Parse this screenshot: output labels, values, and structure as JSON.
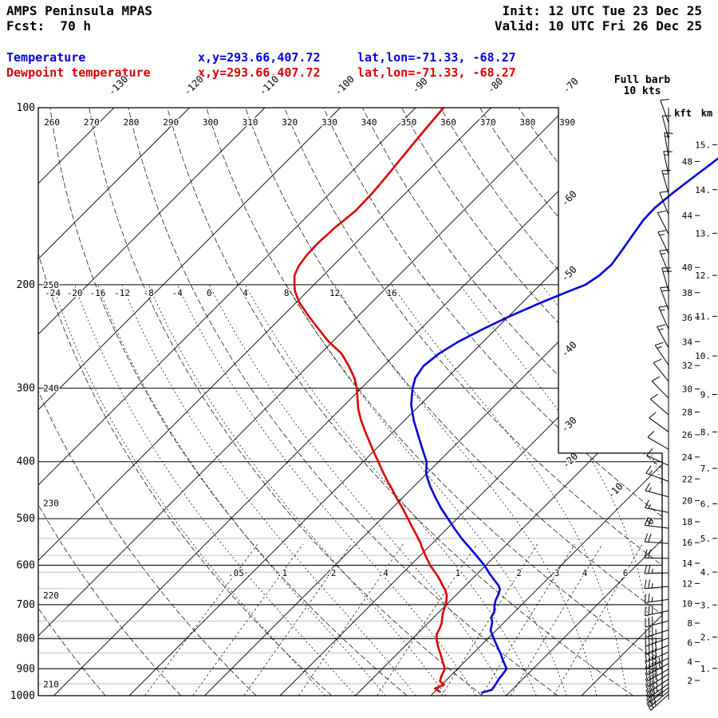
{
  "header": {
    "title": "AMPS Peninsula MPAS",
    "fcst": "Fcst:  70 h",
    "init": "Init: 12 UTC Tue 23 Dec 25",
    "valid": "Valid: 10 UTC Fri 26 Dec 25"
  },
  "legend": {
    "temperature_label": "Temperature",
    "temperature_xy": "x,y=293.66,407.72",
    "temperature_latlon": "lat,lon=-71.33, -68.27",
    "dewpoint_label": "Dewpoint temperature",
    "dewpoint_xy": "x,y=293.66,407.72",
    "dewpoint_latlon": "lat,lon=-71.33, -68.27"
  },
  "barb_legend": {
    "line1": "Full barb",
    "line2": "10 kts",
    "full_barb_kts": 10
  },
  "colors": {
    "temperature": "#0000dd",
    "dewpoint": "#dd0000",
    "grid": "#000000",
    "height_lines": "#b8b8b8"
  },
  "chart_data": {
    "type": "skewt_logp_sounding",
    "pressure_axis_hpa": [
      100,
      200,
      300,
      400,
      500,
      600,
      700,
      800,
      900,
      1000
    ],
    "height_gridlines_km": [
      0.5,
      1,
      1.5,
      2,
      2.5,
      3,
      3.5,
      4,
      4.5,
      5
    ],
    "isotherms_c": {
      "interval": 10,
      "top_labels": [
        -130,
        -120,
        -110,
        -100,
        -90,
        -80,
        -70
      ],
      "right_labels": [
        -60,
        -50,
        -40,
        -30
      ],
      "lower_right_labels": [
        -20,
        -10,
        0
      ]
    },
    "dry_adiabats_k": {
      "interval": 10,
      "top_labels": [
        260,
        270,
        280,
        290,
        300,
        310,
        320,
        330,
        340,
        350,
        360,
        370,
        380,
        390
      ],
      "left_labels": [
        [
          250,
          200
        ],
        [
          240,
          300
        ],
        [
          230,
          470
        ],
        [
          220,
          675
        ],
        [
          210,
          955
        ]
      ]
    },
    "moist_adiabats_c": [
      -24,
      -20,
      -16,
      -12,
      -8,
      -4,
      0,
      4,
      8,
      12,
      16
    ],
    "moist_adiabats_unlabeled_c": [
      20,
      24
    ],
    "mixing_ratio_g_kg": [
      0.05,
      0.1,
      0.2,
      0.4,
      1,
      2,
      3,
      4,
      6
    ],
    "scale_units": {
      "kft": "kft",
      "km": "km"
    },
    "height_scale_kft": [
      48,
      44,
      40,
      38,
      36,
      34,
      32,
      30,
      28,
      26,
      24,
      22,
      20,
      18,
      16,
      14,
      12,
      10,
      8,
      6,
      4,
      2
    ],
    "height_scale_km": [
      15,
      14,
      13,
      12,
      11,
      10,
      9,
      8,
      7,
      6,
      5,
      4,
      3,
      2,
      1
    ],
    "temperature_profile_p_t": [
      [
        988,
        -3.6
      ],
      [
        978,
        -2.7
      ],
      [
        965,
        -2.8
      ],
      [
        950,
        -3.0
      ],
      [
        935,
        -3.2
      ],
      [
        920,
        -3.3
      ],
      [
        900,
        -3.5
      ],
      [
        880,
        -4.6
      ],
      [
        860,
        -5.7
      ],
      [
        850,
        -6.2
      ],
      [
        830,
        -7.4
      ],
      [
        800,
        -9.2
      ],
      [
        775,
        -10.7
      ],
      [
        750,
        -11.6
      ],
      [
        735,
        -12.4
      ],
      [
        720,
        -12.7
      ],
      [
        705,
        -13.4
      ],
      [
        690,
        -14.0
      ],
      [
        675,
        -14.4
      ],
      [
        660,
        -14.9
      ],
      [
        650,
        -15.6
      ],
      [
        635,
        -17.0
      ],
      [
        620,
        -18.4
      ],
      [
        600,
        -20.2
      ],
      [
        580,
        -22.3
      ],
      [
        560,
        -24.5
      ],
      [
        540,
        -26.8
      ],
      [
        520,
        -29.0
      ],
      [
        500,
        -31.2
      ],
      [
        480,
        -33.5
      ],
      [
        460,
        -35.7
      ],
      [
        440,
        -37.9
      ],
      [
        420,
        -40.0
      ],
      [
        400,
        -41.6
      ],
      [
        380,
        -43.9
      ],
      [
        360,
        -46.3
      ],
      [
        340,
        -48.8
      ],
      [
        320,
        -51.2
      ],
      [
        300,
        -53.2
      ],
      [
        288,
        -54.2
      ],
      [
        275,
        -54.7
      ],
      [
        262,
        -54.3
      ],
      [
        250,
        -53.3
      ],
      [
        238,
        -51.7
      ],
      [
        226,
        -49.8
      ],
      [
        214,
        -47.4
      ],
      [
        205,
        -45.3
      ],
      [
        200,
        -44.0
      ],
      [
        193,
        -43.4
      ],
      [
        185,
        -43.2
      ],
      [
        175,
        -43.7
      ],
      [
        165,
        -44.3
      ],
      [
        155,
        -44.9
      ],
      [
        148,
        -45.0
      ],
      [
        140,
        -44.6
      ],
      [
        132,
        -44.0
      ],
      [
        126,
        -43.5
      ],
      [
        120,
        -43.0
      ]
    ],
    "dewpoint_profile_p_t": [
      [
        985,
        -9.3
      ],
      [
        972,
        -10.4
      ],
      [
        958,
        -9.7
      ],
      [
        945,
        -10.7
      ],
      [
        930,
        -11.1
      ],
      [
        915,
        -11.4
      ],
      [
        900,
        -11.7
      ],
      [
        880,
        -12.7
      ],
      [
        860,
        -13.7
      ],
      [
        850,
        -14.2
      ],
      [
        830,
        -15.3
      ],
      [
        810,
        -16.3
      ],
      [
        800,
        -16.8
      ],
      [
        785,
        -17.4
      ],
      [
        770,
        -17.7
      ],
      [
        755,
        -18.1
      ],
      [
        740,
        -18.7
      ],
      [
        725,
        -19.3
      ],
      [
        710,
        -19.8
      ],
      [
        700,
        -20.1
      ],
      [
        690,
        -20.5
      ],
      [
        675,
        -21.2
      ],
      [
        660,
        -22.2
      ],
      [
        650,
        -23.0
      ],
      [
        635,
        -24.2
      ],
      [
        620,
        -25.5
      ],
      [
        600,
        -27.4
      ],
      [
        580,
        -29.1
      ],
      [
        560,
        -30.8
      ],
      [
        550,
        -31.6
      ],
      [
        530,
        -33.5
      ],
      [
        510,
        -35.5
      ],
      [
        500,
        -36.5
      ],
      [
        480,
        -38.6
      ],
      [
        460,
        -40.9
      ],
      [
        450,
        -42.0
      ],
      [
        430,
        -44.4
      ],
      [
        410,
        -46.8
      ],
      [
        400,
        -48.0
      ],
      [
        385,
        -49.9
      ],
      [
        370,
        -51.8
      ],
      [
        355,
        -53.8
      ],
      [
        340,
        -55.8
      ],
      [
        325,
        -57.7
      ],
      [
        310,
        -59.4
      ],
      [
        300,
        -60.6
      ],
      [
        288,
        -62.3
      ],
      [
        275,
        -64.6
      ],
      [
        262,
        -67.2
      ],
      [
        250,
        -70.5
      ],
      [
        238,
        -73.5
      ],
      [
        226,
        -76.6
      ],
      [
        214,
        -79.7
      ],
      [
        205,
        -81.7
      ],
      [
        200,
        -82.6
      ],
      [
        193,
        -83.8
      ],
      [
        186,
        -84.5
      ],
      [
        178,
        -84.9
      ],
      [
        170,
        -85.0
      ],
      [
        160,
        -84.8
      ],
      [
        150,
        -84.3
      ],
      [
        140,
        -84.4
      ],
      [
        130,
        -84.8
      ],
      [
        120,
        -85.3
      ],
      [
        110,
        -85.8
      ],
      [
        100,
        -86.3
      ]
    ],
    "wind_barbs_p_dir_spd": [
      [
        106,
        340,
        10
      ],
      [
        113,
        345,
        10
      ],
      [
        121,
        350,
        15
      ],
      [
        130,
        348,
        15
      ],
      [
        140,
        344,
        15
      ],
      [
        152,
        338,
        10
      ],
      [
        164,
        333,
        10
      ],
      [
        177,
        334,
        15
      ],
      [
        191,
        338,
        15
      ],
      [
        205,
        344,
        20
      ],
      [
        221,
        340,
        20
      ],
      [
        238,
        336,
        15
      ],
      [
        256,
        331,
        15
      ],
      [
        274,
        326,
        15
      ],
      [
        292,
        321,
        10
      ],
      [
        312,
        316,
        10
      ],
      [
        333,
        311,
        10
      ],
      [
        356,
        306,
        10
      ],
      [
        381,
        300,
        10
      ],
      [
        406,
        295,
        10
      ],
      [
        432,
        290,
        15
      ],
      [
        459,
        285,
        15
      ],
      [
        488,
        281,
        15
      ],
      [
        519,
        277,
        20
      ],
      [
        551,
        274,
        20
      ],
      [
        584,
        271,
        20
      ],
      [
        618,
        268,
        25
      ],
      [
        652,
        265,
        25
      ],
      [
        686,
        262,
        25
      ],
      [
        717,
        258,
        30
      ],
      [
        746,
        255,
        30
      ],
      [
        773,
        252,
        35
      ],
      [
        798,
        250,
        35
      ],
      [
        821,
        248,
        40
      ],
      [
        843,
        246,
        40
      ],
      [
        863,
        244,
        45
      ],
      [
        882,
        242,
        45
      ],
      [
        901,
        240,
        40
      ],
      [
        919,
        238,
        40
      ],
      [
        937,
        236,
        35
      ],
      [
        954,
        234,
        35
      ],
      [
        969,
        232,
        30
      ],
      [
        983,
        230,
        30
      ],
      [
        995,
        228,
        25
      ]
    ]
  }
}
